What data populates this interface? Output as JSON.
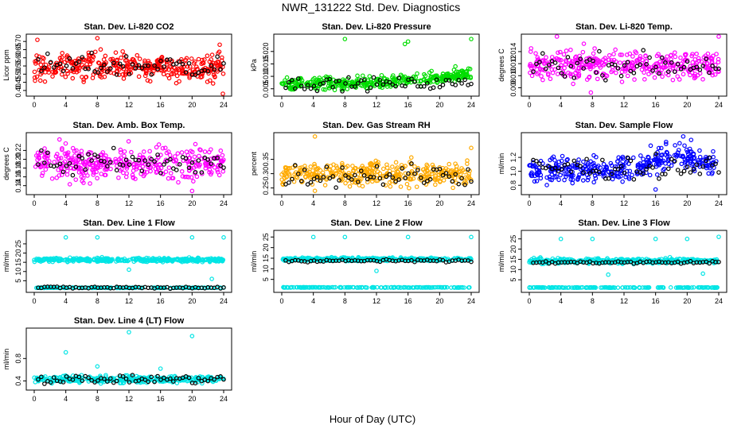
{
  "figure": {
    "title": "NWR_131222  Std. Dev. Diagnostics",
    "xlabel": "Hour of Day (UTC)"
  },
  "chart_data": [
    {
      "type": "scatter",
      "title": "Stan. Dev. Li-820 CO2",
      "ylabel": "Licor ppm",
      "color": "#ff0000",
      "xlim": [
        0,
        24
      ],
      "ylim": [
        0.38,
        0.73
      ],
      "xticks": [
        0,
        4,
        8,
        12,
        16,
        20,
        24
      ],
      "yticks": [
        0.4,
        0.45,
        0.5,
        0.55,
        0.6,
        0.65,
        0.7
      ],
      "ytick_labels": [
        "0.40",
        "0.45",
        "0.50",
        "0.55",
        "0.60",
        "0.65",
        "0.70"
      ],
      "base": 0.545,
      "spread": 0.04,
      "extremes": [
        [
          23.9,
          0.38
        ],
        [
          0.4,
          0.71
        ],
        [
          8,
          0.72
        ],
        [
          23.5,
          0.68
        ]
      ],
      "black_base": 0.55,
      "black_spread": 0.035
    },
    {
      "type": "scatter",
      "title": "Stan. Dev. Li-820 Pressure",
      "ylabel": "kPa",
      "color": "#00dd00",
      "xlim": [
        0,
        24
      ],
      "ylim": [
        0.003,
        0.026
      ],
      "xticks": [
        0,
        4,
        8,
        12,
        16,
        20,
        24
      ],
      "yticks": [
        0.005,
        0.01,
        0.015,
        0.02
      ],
      "ytick_labels": [
        "0.005",
        "0.010",
        "0.015",
        "0.020"
      ],
      "base": 0.0065,
      "spread": 0.0012,
      "trend": [
        [
          0,
          0.0065
        ],
        [
          13,
          0.0075
        ],
        [
          18,
          0.009
        ],
        [
          24,
          0.011
        ]
      ],
      "extremes": [
        [
          8,
          0.025
        ],
        [
          15.6,
          0.023
        ],
        [
          16,
          0.024
        ],
        [
          24,
          0.025
        ],
        [
          22,
          0.014
        ]
      ],
      "black_base": 0.007,
      "black_spread": 0.0012
    },
    {
      "type": "scatter",
      "title": "Stan. Dev. Li-820 Temp.",
      "ylabel": "degrees C",
      "color": "#ff00ff",
      "xlim": [
        0,
        24
      ],
      "ylim": [
        0.007,
        0.0165
      ],
      "xticks": [
        0,
        4,
        8,
        12,
        16,
        20,
        24
      ],
      "yticks": [
        0.008,
        0.01,
        0.012,
        0.014
      ],
      "ytick_labels": [
        "0.008",
        "0.010",
        "0.012",
        "0.014"
      ],
      "base": 0.0118,
      "spread": 0.0012,
      "extremes": [
        [
          3.5,
          0.0165
        ],
        [
          7.8,
          0.0072
        ],
        [
          24,
          0.0165
        ]
      ],
      "black_base": 0.0118,
      "black_spread": 0.001
    },
    {
      "type": "scatter",
      "title": "Stan. Dev. Amb. Box Temp.",
      "ylabel": "degrees C",
      "color": "#ff00ff",
      "xlim": [
        0,
        24
      ],
      "ylim": [
        0.125,
        0.255
      ],
      "xticks": [
        0,
        4,
        8,
        12,
        16,
        20,
        24
      ],
      "yticks": [
        0.14,
        0.16,
        0.18,
        0.2,
        0.22
      ],
      "ytick_labels": [
        "0.14",
        "0.16",
        "0.18",
        "0.20",
        "0.22"
      ],
      "base": 0.19,
      "spread": 0.018,
      "extremes": [
        [
          20,
          0.128
        ],
        [
          3.2,
          0.245
        ]
      ],
      "black_base": 0.19,
      "black_spread": 0.016
    },
    {
      "type": "scatter",
      "title": "Stan. Dev. Gas Stream RH",
      "ylabel": "percent",
      "color": "#ffaa00",
      "xlim": [
        0,
        24
      ],
      "ylim": [
        0.235,
        0.435
      ],
      "xticks": [
        0,
        4,
        8,
        12,
        16,
        20,
        24
      ],
      "yticks": [
        0.25,
        0.3,
        0.35
      ],
      "ytick_labels": [
        "0.25",
        "0.30",
        "0.35"
      ],
      "base": 0.3,
      "spread": 0.02,
      "extremes": [
        [
          4.2,
          0.43
        ],
        [
          4.2,
          0.24
        ],
        [
          24,
          0.39
        ]
      ],
      "black_base": 0.295,
      "black_spread": 0.02
    },
    {
      "type": "scatter",
      "title": "Stan. Dev. Sample Flow",
      "ylabel": "ml/min",
      "color": "#0000ff",
      "xlim": [
        0,
        24
      ],
      "ylim": [
        0.7,
        1.52
      ],
      "xticks": [
        0,
        4,
        8,
        12,
        16,
        20,
        24
      ],
      "yticks": [
        0.8,
        1.0,
        1.2
      ],
      "ytick_labels": [
        "0.8",
        "1.0",
        "1.2"
      ],
      "base": 1.05,
      "spread": 0.09,
      "trend": [
        [
          0,
          1.0
        ],
        [
          12,
          1.05
        ],
        [
          19,
          1.2
        ],
        [
          24,
          1.1
        ]
      ],
      "extremes": [
        [
          19.5,
          1.5
        ],
        [
          16,
          0.74
        ],
        [
          20.5,
          1.45
        ]
      ],
      "black_base": 1.05,
      "black_spread": 0.08
    },
    {
      "type": "scatter",
      "title": "Stan. Dev. Line 1 Flow",
      "ylabel": "ml/min",
      "color": "#00e5e5",
      "xlim": [
        0,
        24
      ],
      "ylim": [
        0,
        31
      ],
      "xticks": [
        0,
        4,
        8,
        12,
        16,
        20,
        24
      ],
      "yticks": [
        5,
        10,
        15,
        20,
        25
      ],
      "ytick_labels": [
        "5",
        "10",
        "15",
        "20",
        "25"
      ],
      "base": 16.3,
      "spread": 0.5,
      "low_band": 1.2,
      "extremes": [
        [
          4,
          28.5
        ],
        [
          8,
          28.5
        ],
        [
          20,
          28.5
        ],
        [
          24,
          28.5
        ],
        [
          12,
          11
        ],
        [
          22.5,
          6
        ]
      ],
      "black_base": 1.3,
      "black_spread": 0.3
    },
    {
      "type": "scatter",
      "title": "Stan. Dev. Line 2 Flow",
      "ylabel": "ml/min",
      "color": "#00e5e5",
      "xlim": [
        0,
        24
      ],
      "ylim": [
        0,
        27
      ],
      "xticks": [
        0,
        4,
        8,
        12,
        16,
        20,
        24
      ],
      "yticks": [
        5,
        10,
        15,
        20,
        25
      ],
      "ytick_labels": [
        "5",
        "10",
        "15",
        "20",
        "25"
      ],
      "base": 14.5,
      "spread": 0.4,
      "low_band": 1.2,
      "extremes": [
        [
          4,
          25
        ],
        [
          8,
          25
        ],
        [
          16,
          25
        ],
        [
          24,
          25
        ],
        [
          12,
          9
        ]
      ],
      "black_base": 13.8,
      "black_spread": 0.3
    },
    {
      "type": "scatter",
      "title": "Stan. Dev. Line 3 Flow",
      "ylabel": "ml/min",
      "color": "#00e5e5",
      "xlim": [
        0,
        24
      ],
      "ylim": [
        0,
        28
      ],
      "xticks": [
        0,
        4,
        8,
        12,
        16,
        20,
        24
      ],
      "yticks": [
        5,
        10,
        15,
        20,
        25
      ],
      "ytick_labels": [
        "5",
        "10",
        "15",
        "20",
        "25"
      ],
      "base": 14.2,
      "spread": 0.6,
      "low_band": 1.2,
      "extremes": [
        [
          4,
          25
        ],
        [
          8,
          25
        ],
        [
          16,
          25
        ],
        [
          20,
          25
        ],
        [
          24,
          26
        ],
        [
          10,
          7.5
        ],
        [
          22,
          8
        ]
      ],
      "black_base": 13.5,
      "black_spread": 0.3
    },
    {
      "type": "scatter",
      "title": "Stan. Dev. Line 4 (LT) Flow",
      "ylabel": "ml/min",
      "color": "#00e5e5",
      "xlim": [
        0,
        24
      ],
      "ylim": [
        0.28,
        1.3
      ],
      "xticks": [
        0,
        4,
        8,
        12,
        16,
        20,
        24
      ],
      "yticks": [
        0.4,
        0.8
      ],
      "ytick_labels": [
        "0.4",
        "0.8"
      ],
      "base": 0.43,
      "spread": 0.03,
      "extremes": [
        [
          12,
          1.27
        ],
        [
          20,
          1.2
        ],
        [
          4,
          0.91
        ],
        [
          8,
          0.66
        ],
        [
          16,
          0.62
        ]
      ],
      "black_base": 0.43,
      "black_spread": 0.035
    }
  ]
}
